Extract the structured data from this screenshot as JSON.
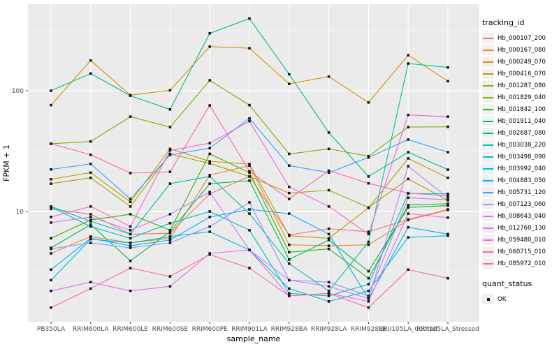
{
  "figure": {
    "background": "#FFFFFF",
    "panel_bg": "#EBEBEB",
    "grid_color": "#FFFFFF",
    "axis_text_color": "#4D4D4D",
    "title_color": "#000000",
    "marker_color": "#1A1A1A"
  },
  "y_axis": {
    "title": "FPKM + 1",
    "ticks": [
      {
        "label": "100",
        "value": 100
      },
      {
        "label": "10",
        "value": 10
      }
    ]
  },
  "x_axis": {
    "title": "sample_name"
  },
  "legend": {
    "tracking_title": "tracking_id",
    "quant_title": "quant_status",
    "quant_ok_label": "OK"
  },
  "chart_data": {
    "type": "line",
    "title": "",
    "xlabel": "sample_name",
    "ylabel": "FPKM + 1",
    "y_scale": "log10",
    "ylim": [
      1.2,
      520
    ],
    "y_major_gridlines": [
      10,
      100
    ],
    "y_minor_gridlines": [
      3.162,
      31.62,
      316.2
    ],
    "grid": true,
    "legend_position": "right",
    "marker": "black-square",
    "categories": [
      "PB350LA",
      "RRIM600LA",
      "RRIM600LE",
      "RRIM600SE",
      "RRIM600PE",
      "RRIM901LA",
      "RRIM928BA",
      "RRIM928LA",
      "RRIM928LE",
      "RRII105LA_Control",
      "RRII105LA_Stressed"
    ],
    "series": [
      {
        "name": "Hb_000107_200",
        "color": "#F8766D",
        "values": [
          10.5,
          9.5,
          6.5,
          6.6,
          14,
          19.5,
          6.4,
          7.2,
          6.8,
          8.6,
          10.4
        ]
      },
      {
        "name": "Hb_000167_080",
        "color": "#EA8331",
        "values": [
          4.5,
          6.2,
          5.5,
          6.0,
          20,
          24,
          5.3,
          5.2,
          5.3,
          8.5,
          10.3
        ]
      },
      {
        "name": "Hb_000249_070",
        "color": "#D89000",
        "values": [
          76,
          178,
          92,
          101,
          232,
          225,
          114,
          131,
          80,
          197,
          120
        ]
      },
      {
        "name": "Hb_000416_070",
        "color": "#C09B00",
        "values": [
          18.5,
          21,
          12,
          33,
          26,
          24.7,
          6.3,
          6.0,
          10.7,
          27.5,
          19
        ]
      },
      {
        "name": "Hb_001287_080",
        "color": "#A3A500",
        "values": [
          17,
          19,
          11,
          30,
          25,
          19.5,
          14.2,
          15,
          10.8,
          18.6,
          12.4
        ]
      },
      {
        "name": "Hb_001829_040",
        "color": "#7CAE00",
        "values": [
          36.4,
          38,
          61,
          50,
          122,
          76,
          30,
          33,
          28.7,
          50,
          50.3
        ]
      },
      {
        "name": "Hb_001842_100",
        "color": "#39B600",
        "values": [
          6.0,
          8.5,
          9.5,
          7.0,
          30,
          21,
          4.6,
          4.9,
          2.8,
          11.3,
          11.6
        ]
      },
      {
        "name": "Hb_001911_040",
        "color": "#00BB4E",
        "values": [
          5.0,
          7.8,
          3.9,
          6.8,
          17,
          18,
          4.0,
          5.8,
          3.2,
          10.8,
          11.2
        ]
      },
      {
        "name": "Hb_002687_080",
        "color": "#00BF7D",
        "values": [
          100,
          139,
          91,
          70,
          299,
          396,
          137,
          45,
          19.5,
          31,
          22.2
        ]
      },
      {
        "name": "Hb_003038_220",
        "color": "#00C1A3",
        "values": [
          11,
          8.3,
          6.5,
          17,
          19.5,
          9.6,
          3.7,
          2.2,
          5.6,
          168,
          156
        ]
      },
      {
        "name": "Hb_003498_090",
        "color": "#00BFC4",
        "values": [
          10.9,
          7.5,
          6.0,
          8.0,
          10,
          7.0,
          2.1,
          2.0,
          2.5,
          14.1,
          14
        ]
      },
      {
        "name": "Hb_003992_040",
        "color": "#00BAE0",
        "values": [
          2.7,
          5.9,
          5.5,
          6.2,
          6.8,
          4.8,
          2.3,
          1.8,
          2.2,
          6.1,
          6.3
        ]
      },
      {
        "name": "Hb_004883_050",
        "color": "#00B0F6",
        "values": [
          3.3,
          6.0,
          5.2,
          5.8,
          9.0,
          10.4,
          9.6,
          6.5,
          1.9,
          7.4,
          6.5
        ]
      },
      {
        "name": "Hb_005731_120",
        "color": "#35A2FF",
        "values": [
          22.3,
          24.8,
          12.7,
          29.4,
          33.5,
          59,
          24,
          21,
          28,
          39.4,
          31
        ]
      },
      {
        "name": "Hb_007123_060",
        "color": "#9590FF",
        "values": [
          4.9,
          5.5,
          5.0,
          5.5,
          7.5,
          11.9,
          2.7,
          2.6,
          2.0,
          13,
          12.5
        ]
      },
      {
        "name": "Hb_008643_040",
        "color": "#C77CFF",
        "values": [
          8.1,
          9.0,
          7.0,
          9.5,
          14.5,
          4.8,
          2.7,
          2.4,
          1.9,
          23.7,
          13
        ]
      },
      {
        "name": "Hb_012760_130",
        "color": "#E76BF3",
        "values": [
          2.2,
          2.6,
          2.2,
          2.4,
          4.5,
          4.8,
          2.0,
          2.1,
          1.8,
          9.6,
          8.9
        ]
      },
      {
        "name": "Hb_059480_010",
        "color": "#FA62DB",
        "values": [
          9.0,
          11,
          7.5,
          32,
          36.8,
          56,
          16,
          11,
          6.5,
          63,
          61
        ]
      },
      {
        "name": "Hb_060715_010",
        "color": "#FF62BC",
        "values": [
          36.4,
          29.5,
          20.8,
          21.3,
          75.6,
          21.5,
          12.7,
          21.8,
          17.1,
          14.2,
          13.5
        ]
      },
      {
        "name": "Hb_085972_010",
        "color": "#FF6A98",
        "values": [
          1.6,
          2.3,
          3.4,
          2.9,
          4.4,
          3.4,
          2.0,
          2.1,
          1.6,
          3.3,
          2.8
        ]
      }
    ]
  }
}
